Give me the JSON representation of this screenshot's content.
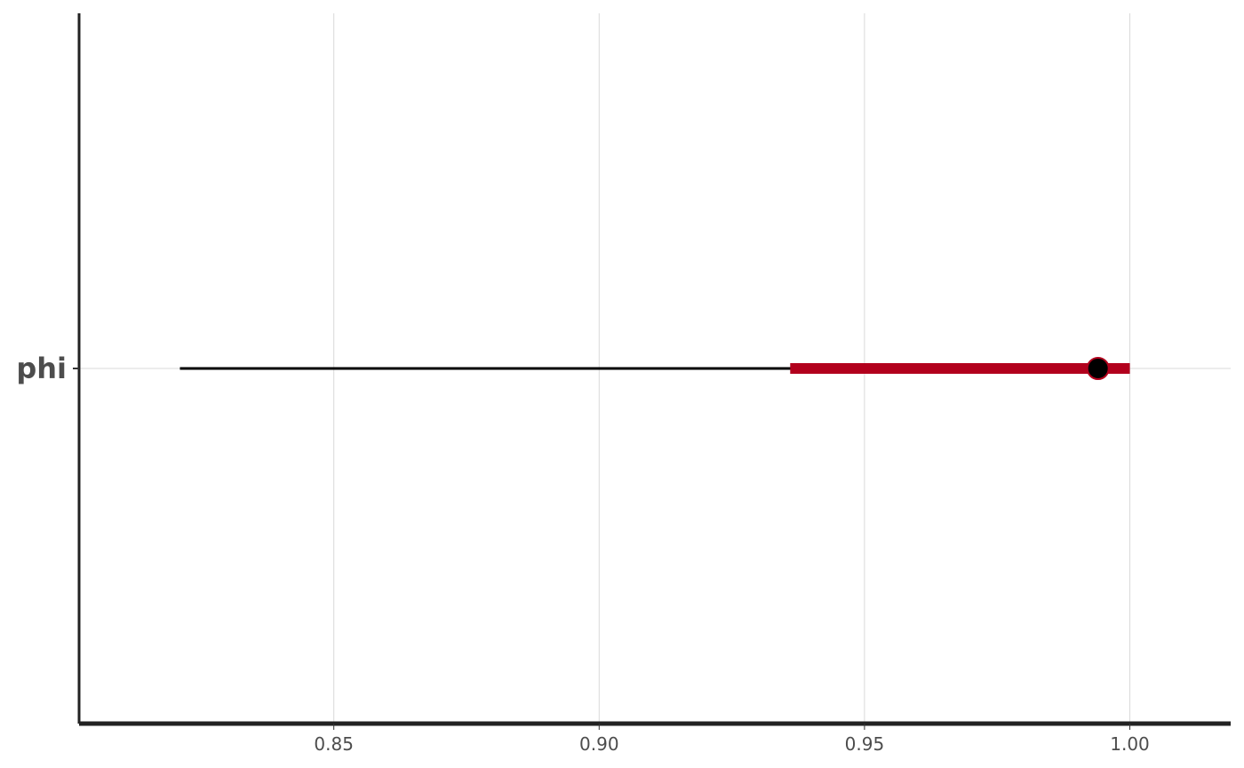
{
  "chart_data": {
    "type": "interval",
    "title": "",
    "xlabel": "",
    "ylabel": "",
    "xlim": [
      0.802,
      1.019
    ],
    "x_ticks": [
      0.85,
      0.9,
      0.95,
      1.0
    ],
    "x_tick_labels": [
      "0.85",
      "0.90",
      "0.95",
      "1.00"
    ],
    "grid": "vertical and horizontal major lines",
    "parameters": [
      {
        "label": "phi",
        "outer_interval": [
          0.821,
          1.0
        ],
        "inner_interval": [
          0.936,
          1.0
        ],
        "point_estimate": 0.994
      }
    ],
    "colors": {
      "outer_line": "#000000",
      "inner_line": "#b2001d",
      "point_fill": "#000000",
      "point_stroke": "#b2001d",
      "grid": "#d9d9d9",
      "axis": "#222222"
    }
  }
}
